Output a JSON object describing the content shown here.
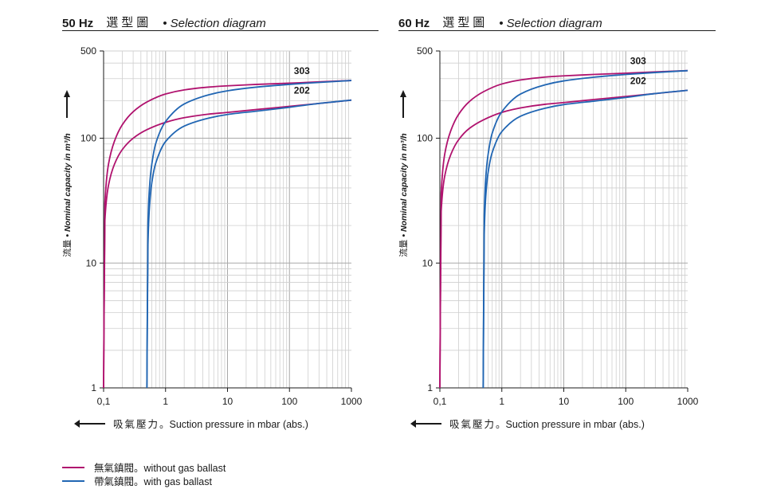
{
  "panels": [
    {
      "freq": "50 Hz",
      "title_cn": "選型圖",
      "title_en": "• Selection diagram"
    },
    {
      "freq": "60 Hz",
      "title_cn": "選型圖",
      "title_en": "• Selection diagram"
    }
  ],
  "ylabel": {
    "cn": "流量",
    "en": "• Nominal capacity in m³/h"
  },
  "xlabel": {
    "cn": "吸氣壓力",
    "en": "。Suction pressure in mbar (abs.)"
  },
  "legend": [
    {
      "cn": "無氣鎮閥",
      "en": "。without gas ballast",
      "color": "#b0126e"
    },
    {
      "cn": "帶氣鎮閥",
      "en": "。with gas ballast",
      "color": "#2166b3"
    }
  ],
  "chart_data": [
    {
      "type": "line",
      "title": "50 Hz 選型圖 • Selection diagram",
      "x_scale": "log",
      "y_scale": "log",
      "xlim": [
        0.1,
        1000
      ],
      "ylim": [
        1,
        500
      ],
      "x_ticks": [
        "0,1",
        "1",
        "10",
        "100",
        "1000"
      ],
      "y_ticks": [
        "1",
        "10",
        "100",
        "500"
      ],
      "xlabel": "吸氣壓力。Suction pressure in mbar (abs.)",
      "ylabel": "流量 • Nominal capacity in m³/h",
      "grid": true,
      "curve_labels": [
        "303",
        "202"
      ],
      "series": [
        {
          "name": "無氣鎮閥。without gas ballast",
          "model": "303",
          "color": "#b0126e",
          "x": [
            0.1,
            0.105,
            0.12,
            0.15,
            0.2,
            0.3,
            0.5,
            1,
            2,
            5,
            10,
            30,
            100,
            300,
            1000
          ],
          "y": [
            1,
            30,
            62,
            95,
            128,
            163,
            195,
            226,
            244,
            257,
            263,
            270,
            276,
            283,
            290
          ]
        },
        {
          "name": "無氣鎮閥。without gas ballast",
          "model": "202",
          "color": "#b0126e",
          "x": [
            0.1,
            0.105,
            0.12,
            0.15,
            0.2,
            0.3,
            0.5,
            1,
            2,
            5,
            10,
            30,
            100,
            300,
            1000
          ],
          "y": [
            1,
            22,
            42,
            62,
            81,
            100,
            117,
            134,
            146,
            156,
            161,
            170,
            180,
            190,
            202
          ]
        },
        {
          "name": "帶氣鎮閥。with gas ballast",
          "model": "303",
          "color": "#2166b3",
          "x": [
            0.5,
            0.52,
            0.55,
            0.6,
            0.7,
            1,
            2,
            5,
            10,
            30,
            100,
            300,
            1000
          ],
          "y": [
            1,
            20,
            40,
            62,
            92,
            136,
            188,
            223,
            240,
            257,
            270,
            280,
            290
          ]
        },
        {
          "name": "帶氣鎮閥。with gas ballast",
          "model": "202",
          "color": "#2166b3",
          "x": [
            0.5,
            0.52,
            0.55,
            0.6,
            0.7,
            1,
            2,
            5,
            10,
            30,
            100,
            300,
            1000
          ],
          "y": [
            1,
            14,
            28,
            44,
            64,
            94,
            125,
            145,
            155,
            165,
            177,
            190,
            202
          ]
        }
      ]
    },
    {
      "type": "line",
      "title": "60 Hz 選型圖 • Selection diagram",
      "x_scale": "log",
      "y_scale": "log",
      "xlim": [
        0.1,
        1000
      ],
      "ylim": [
        1,
        500
      ],
      "x_ticks": [
        "0,1",
        "1",
        "10",
        "100",
        "1000"
      ],
      "y_ticks": [
        "1",
        "10",
        "100",
        "500"
      ],
      "xlabel": "吸氣壓力。Suction pressure in mbar (abs.)",
      "ylabel": "流量 • Nominal capacity in m³/h",
      "grid": true,
      "curve_labels": [
        "303",
        "202"
      ],
      "series": [
        {
          "name": "無氣鎮閥。without gas ballast",
          "model": "303",
          "color": "#b0126e",
          "x": [
            0.1,
            0.105,
            0.12,
            0.15,
            0.2,
            0.3,
            0.5,
            1,
            2,
            5,
            10,
            30,
            100,
            300,
            1000
          ],
          "y": [
            1,
            36,
            75,
            115,
            155,
            197,
            235,
            272,
            293,
            309,
            316,
            324,
            332,
            340,
            348
          ]
        },
        {
          "name": "無氣鎮閥。without gas ballast",
          "model": "202",
          "color": "#b0126e",
          "x": [
            0.1,
            0.105,
            0.12,
            0.15,
            0.2,
            0.3,
            0.5,
            1,
            2,
            5,
            10,
            30,
            100,
            300,
            1000
          ],
          "y": [
            1,
            26,
            50,
            74,
            97,
            120,
            140,
            161,
            175,
            187,
            193,
            204,
            216,
            228,
            242
          ]
        },
        {
          "name": "帶氣鎮閥。with gas ballast",
          "model": "303",
          "color": "#2166b3",
          "x": [
            0.5,
            0.52,
            0.55,
            0.6,
            0.7,
            1,
            2,
            5,
            10,
            30,
            100,
            300,
            1000
          ],
          "y": [
            1,
            24,
            48,
            74,
            110,
            163,
            226,
            268,
            288,
            308,
            324,
            336,
            348
          ]
        },
        {
          "name": "帶氣鎮閥。with gas ballast",
          "model": "202",
          "color": "#2166b3",
          "x": [
            0.5,
            0.52,
            0.55,
            0.6,
            0.7,
            1,
            2,
            5,
            10,
            30,
            100,
            300,
            1000
          ],
          "y": [
            1,
            17,
            34,
            53,
            77,
            113,
            150,
            174,
            186,
            198,
            212,
            228,
            242
          ]
        }
      ]
    }
  ]
}
